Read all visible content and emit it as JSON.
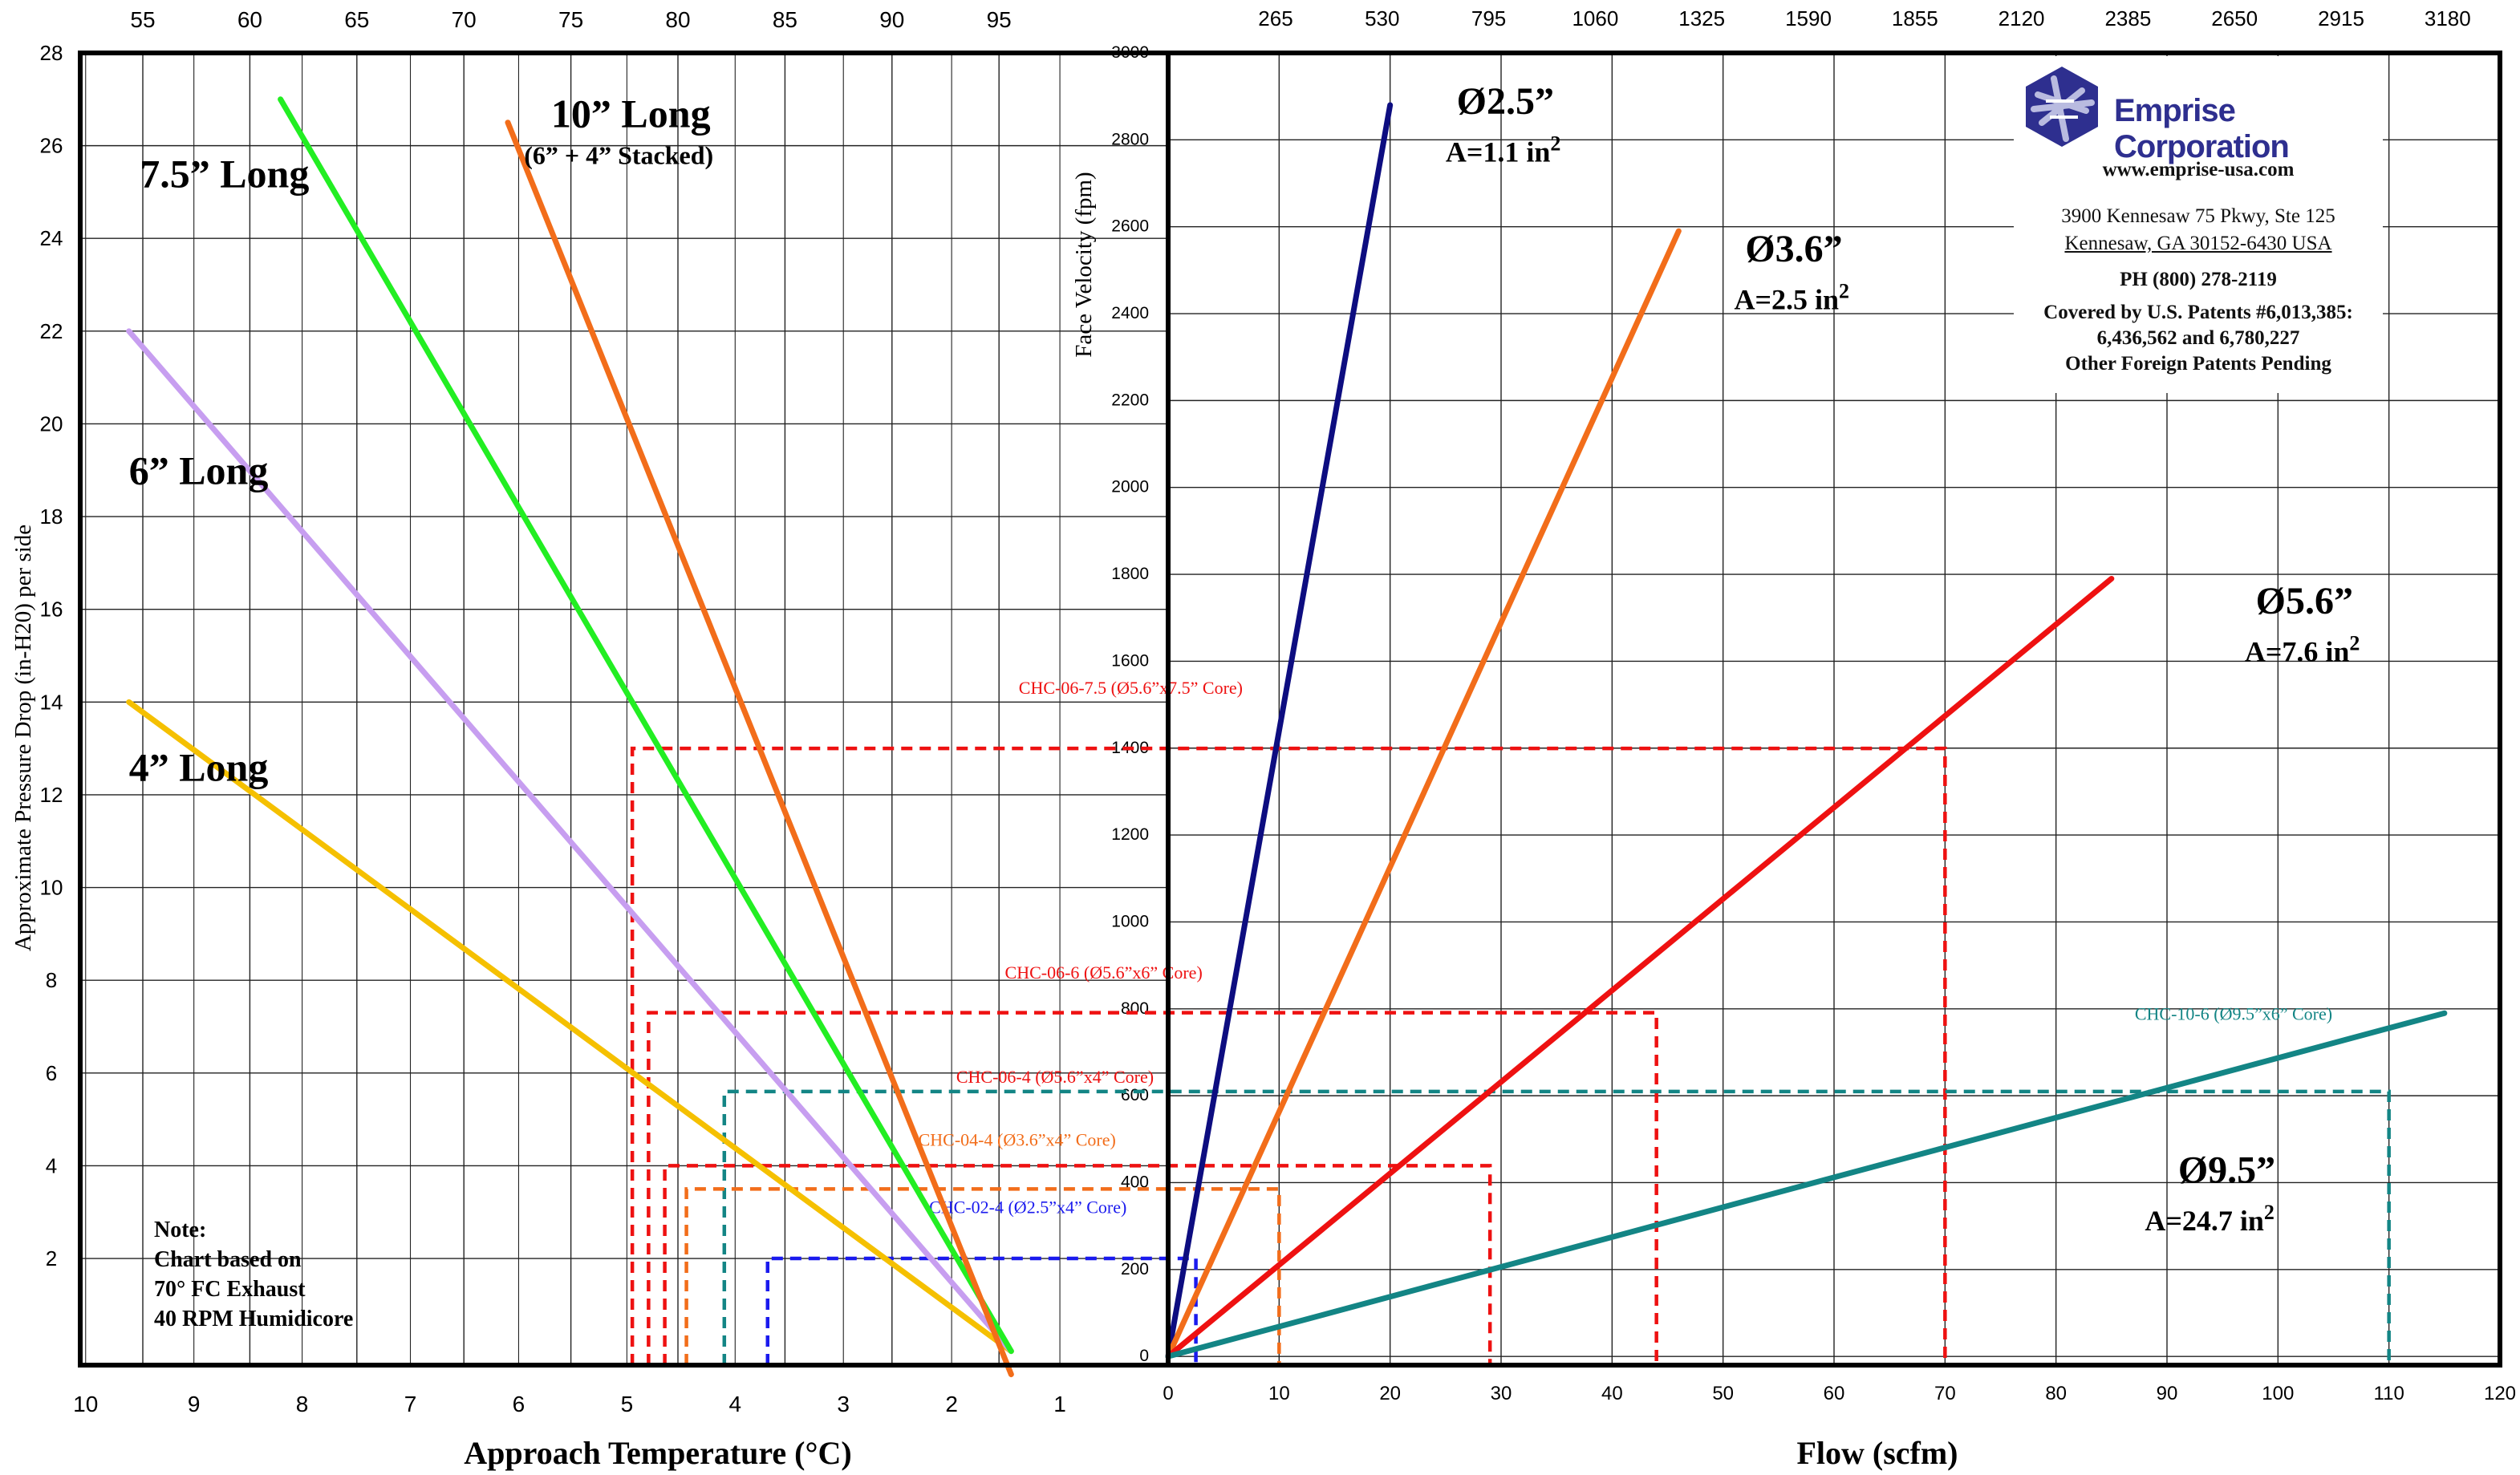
{
  "chart_data": [
    {
      "type": "line",
      "xlabel": "Approach Temperature (°C)",
      "ylabel": "Approximate Pressure Drop (in-H20) per side",
      "x_ticks": [
        10,
        9,
        8,
        7,
        6,
        5,
        4,
        3,
        2,
        1
      ],
      "y_ticks": [
        2,
        4,
        6,
        8,
        10,
        12,
        14,
        16,
        18,
        20,
        22,
        24,
        26,
        28
      ],
      "top_ticks": [
        55,
        60,
        65,
        70,
        75,
        80,
        85,
        90,
        95
      ],
      "xlim": [
        10.05,
        0
      ],
      "ylim": [
        -0.3,
        28
      ],
      "series": [
        {
          "name": "4” Long",
          "color": "#f5c000",
          "points": [
            [
              9.6,
              14
            ],
            [
              1.45,
              0
            ]
          ]
        },
        {
          "name": "6” Long",
          "color": "#c79ef0",
          "points": [
            [
              9.6,
              22
            ],
            [
              1.45,
              0
            ]
          ]
        },
        {
          "name": "7.5” Long",
          "color": "#22ee22",
          "points": [
            [
              8.2,
              27
            ],
            [
              1.45,
              0
            ]
          ]
        },
        {
          "name": "10” Long",
          "color": "#f26d1a",
          "points": [
            [
              6.1,
              26.5
            ],
            [
              1.45,
              -0.5
            ]
          ]
        }
      ],
      "labels": [
        {
          "text": "4” Long",
          "x": 9.6,
          "y": 12.3
        },
        {
          "text": "6” Long",
          "x": 9.6,
          "y": 18.7
        },
        {
          "text": "7.5” Long",
          "x": 9.5,
          "y": 25.1
        },
        {
          "text": "10” Long",
          "x": 5.7,
          "y": 26.4
        },
        {
          "text": "(6” + 4” Stacked)",
          "x": 5.95,
          "y": 25.6
        }
      ]
    },
    {
      "type": "line",
      "xlabel": "Flow (scfm)",
      "ylabel": "Face Velocity (fpm)",
      "x_ticks": [
        0,
        10,
        20,
        30,
        40,
        50,
        60,
        70,
        80,
        90,
        100,
        110,
        120
      ],
      "y_ticks": [
        0,
        200,
        400,
        600,
        800,
        1000,
        1200,
        1400,
        1600,
        1800,
        2000,
        2200,
        2400,
        2600,
        2800,
        3000
      ],
      "top_ticks": [
        265,
        530,
        795,
        1060,
        1325,
        1590,
        1855,
        2120,
        2385,
        2650,
        2915,
        3180
      ],
      "xlim": [
        0,
        120
      ],
      "ylim": [
        -20,
        3000
      ],
      "series": [
        {
          "name": "Ø2.5”",
          "area": "A=1.1 in",
          "color": "#0d0d80",
          "points": [
            [
              0,
              0
            ],
            [
              20,
              2880
            ]
          ]
        },
        {
          "name": "Ø3.6”",
          "area": "A=2.5 in",
          "color": "#f26d1a",
          "points": [
            [
              0,
              0
            ],
            [
              46,
              2590
            ]
          ]
        },
        {
          "name": "Ø5.6”",
          "area": "A=7.6 in",
          "color": "#ee1111",
          "points": [
            [
              0,
              0
            ],
            [
              85,
              1790
            ]
          ]
        },
        {
          "name": "Ø9.5”",
          "area": "A=24.7 in",
          "color": "#138585",
          "points": [
            [
              0,
              0
            ],
            [
              115,
              790
            ]
          ]
        }
      ],
      "labels": [
        {
          "series": 0,
          "x": 26,
          "y": 2860,
          "ax": 25,
          "ay": 2750
        },
        {
          "series": 1,
          "x": 52,
          "y": 2520,
          "ax": 51,
          "ay": 2410
        },
        {
          "series": 2,
          "x": 98,
          "y": 1710,
          "ax": 97,
          "ay": 1600
        },
        {
          "series": 3,
          "x": 91,
          "y": 400,
          "ax": 88,
          "ay": 290
        }
      ]
    }
  ],
  "crossover_lines": [
    {
      "label": "CHC-06-7.5 (Ø5.6”x7.5” Core)",
      "color": "#ee1111",
      "temp": 4.95,
      "pd": 13.0,
      "flow": 70,
      "fpm": 1460,
      "label_x": 2.05,
      "label_y": 1525
    },
    {
      "label": "CHC-06-6 (Ø5.6”x6” Core)",
      "color": "#ee1111",
      "temp": 4.8,
      "pd": 7.3,
      "flow": 44,
      "fpm": 920,
      "label_x": 2.3,
      "label_y": 870
    },
    {
      "label": "CHC-10-6 (Ø9.5”x6” Core)",
      "color": "#138585",
      "temp": 4.1,
      "pd": 5.6,
      "flow": 110,
      "fpm": 740,
      "label_x": 96,
      "label_y": 775
    },
    {
      "label": "CHC-06-4 (Ø5.6”x4” Core)",
      "color": "#ee1111",
      "temp": 4.65,
      "pd": 4.0,
      "flow": 29,
      "fpm": 590,
      "label_x": 2.75,
      "label_y": 630
    },
    {
      "label": "CHC-04-4 (Ø3.6”x4” Core)",
      "color": "#f26d1a",
      "temp": 4.45,
      "pd": 3.5,
      "flow": 10,
      "fpm": 540,
      "label_x": 3.1,
      "label_y": 485
    },
    {
      "label": "CHC-02-4 (Ø2.5”x4” Core)",
      "color": "#1a1aee",
      "temp": 3.7,
      "pd": 2.0,
      "flow": 2.5,
      "fpm": 400,
      "label_x": 3.0,
      "label_y": 330
    }
  ],
  "company": {
    "name": "Emprise Corporation",
    "website": "www.emprise-usa.com",
    "address1": "3900 Kennesaw 75 Pkwy, Ste 125",
    "address2": "Kennesaw, GA 30152-6430 USA",
    "phone": "PH (800) 278-2119",
    "patents1": "Covered by U.S. Patents #6,013,385:",
    "patents2": "6,436,562 and 6,780,227",
    "patents3": "Other Foreign Patents Pending"
  },
  "note": {
    "title": "Note:",
    "line1": "Chart based on",
    "line2": "70° FC Exhaust",
    "line3": "40 RPM Humidicore"
  },
  "colors": {
    "grid": "#222222",
    "frame": "#000000",
    "brand": "#2e2f8f"
  }
}
